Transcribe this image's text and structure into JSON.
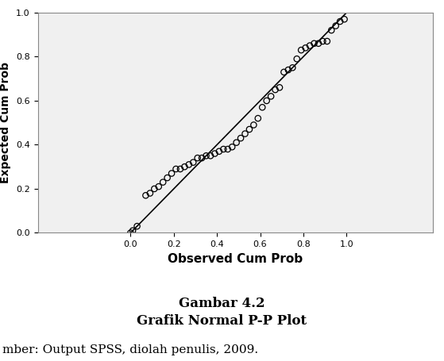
{
  "chart_data": {
    "type": "scatter",
    "x_label": "Observed Cum Prob",
    "y_label": "Expected Cum Prob",
    "xlim": [
      -0.43,
      1.4
    ],
    "ylim": [
      0,
      1
    ],
    "xticks": [
      {
        "value": 0,
        "label": "0.0"
      },
      {
        "value": 0.2,
        "label": "0.2"
      },
      {
        "value": 0.4,
        "label": "0.4"
      },
      {
        "value": 0.6,
        "label": "0.6"
      },
      {
        "value": 0.8,
        "label": "0.8"
      },
      {
        "value": 1,
        "label": "1.0"
      }
    ],
    "yticks": [
      {
        "value": 0,
        "label": "0.0"
      },
      {
        "value": 0.2,
        "label": "0.2"
      },
      {
        "value": 0.4,
        "label": "0.4"
      },
      {
        "value": 0.6,
        "label": "0.6"
      },
      {
        "value": 0.8,
        "label": "0.8"
      },
      {
        "value": 1,
        "label": "1.0"
      }
    ],
    "series": [
      {
        "type": "scatter",
        "marker": "circle",
        "color": "#000000",
        "x": [
          0.0,
          0.01,
          0.03,
          0.07,
          0.09,
          0.11,
          0.13,
          0.15,
          0.17,
          0.19,
          0.21,
          0.23,
          0.25,
          0.27,
          0.29,
          0.31,
          0.33,
          0.35,
          0.37,
          0.39,
          0.41,
          0.43,
          0.45,
          0.47,
          0.49,
          0.51,
          0.53,
          0.55,
          0.57,
          0.59,
          0.61,
          0.63,
          0.65,
          0.67,
          0.69,
          0.71,
          0.73,
          0.75,
          0.77,
          0.79,
          0.81,
          0.83,
          0.85,
          0.87,
          0.89,
          0.91,
          0.93,
          0.95,
          0.97,
          0.99
        ],
        "values": [
          0.0,
          0.01,
          0.03,
          0.17,
          0.18,
          0.2,
          0.21,
          0.23,
          0.25,
          0.27,
          0.29,
          0.29,
          0.3,
          0.31,
          0.32,
          0.34,
          0.34,
          0.35,
          0.35,
          0.36,
          0.37,
          0.38,
          0.38,
          0.39,
          0.41,
          0.43,
          0.45,
          0.47,
          0.49,
          0.52,
          0.57,
          0.6,
          0.62,
          0.65,
          0.66,
          0.73,
          0.74,
          0.75,
          0.79,
          0.83,
          0.84,
          0.85,
          0.86,
          0.86,
          0.87,
          0.87,
          0.92,
          0.94,
          0.96,
          0.97
        ]
      },
      {
        "type": "line",
        "line_style": "solid",
        "color": "#000000",
        "x": [
          0,
          1
        ],
        "values": [
          0,
          1
        ]
      }
    ]
  },
  "caption": {
    "figure": "Gambar 4.2",
    "title": "Grafik Normal P-P Plot",
    "source": "mber: Output SPSS, diolah penulis, 2009."
  }
}
